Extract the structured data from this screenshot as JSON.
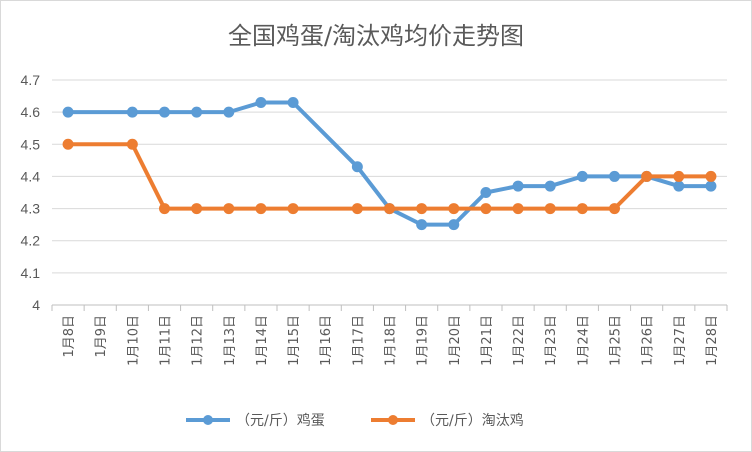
{
  "chart_data": {
    "type": "line",
    "title": "全国鸡蛋/淘汰鸡均价走势图",
    "categories": [
      "1月8日",
      "1月9日",
      "1月10日",
      "1月11日",
      "1月12日",
      "1月13日",
      "1月14日",
      "1月15日",
      "1月16日",
      "1月17日",
      "1月18日",
      "1月19日",
      "1月20日",
      "1月21日",
      "1月22日",
      "1月23日",
      "1月24日",
      "1月25日",
      "1月26日",
      "1月27日",
      "1月28日"
    ],
    "yticks": [
      "4",
      "4.1",
      "4.2",
      "4.3",
      "4.4",
      "4.5",
      "4.6",
      "4.7"
    ],
    "ylim": [
      4,
      4.7
    ],
    "grid": true,
    "legend_position": "bottom",
    "series": [
      {
        "name": "（元/斤）鸡蛋",
        "color": "#5B9BD5",
        "values": [
          4.6,
          null,
          4.6,
          4.6,
          4.6,
          4.6,
          4.63,
          4.63,
          null,
          4.43,
          4.3,
          4.25,
          4.25,
          4.35,
          4.37,
          4.37,
          4.4,
          4.4,
          4.4,
          4.37,
          4.37
        ]
      },
      {
        "name": "（元/斤）淘汰鸡",
        "color": "#ED7D31",
        "values": [
          4.5,
          null,
          4.5,
          4.3,
          4.3,
          4.3,
          4.3,
          4.3,
          null,
          4.3,
          4.3,
          4.3,
          4.3,
          4.3,
          4.3,
          4.3,
          4.3,
          4.3,
          4.4,
          4.4,
          4.4
        ]
      }
    ]
  }
}
